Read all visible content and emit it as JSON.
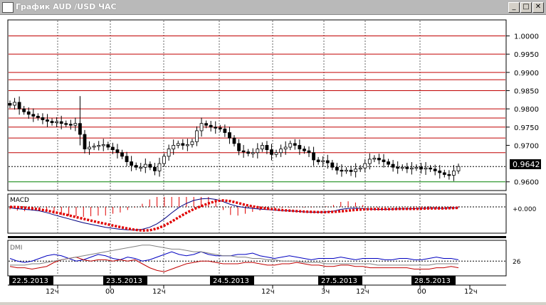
{
  "window": {
    "title": "График AUD /USD  ЧАС",
    "buttons": {
      "minimize": "_",
      "maximize": "□",
      "close": "✕"
    }
  },
  "chart_data": [
    {
      "type": "candlestick",
      "yticks": [
        "1.0000",
        "0.9950",
        "0.9900",
        "0.9850",
        "0.9800",
        "0.9750",
        "0.9700",
        "0.9600"
      ],
      "ylim": [
        0.958,
        1.004
      ],
      "last_price": "0.9642",
      "red_levels": [
        1.0,
        0.995,
        0.99,
        0.988,
        0.985,
        0.98,
        0.9775,
        0.975,
        0.972,
        0.968,
        0.96
      ],
      "series": [
        {
          "close": [
            0.981,
            0.9818,
            0.98,
            0.9792,
            0.9785,
            0.978,
            0.9776,
            0.977,
            0.9766,
            0.9762,
            0.9765,
            0.976,
            0.9758,
            0.9755,
            0.976,
            0.973,
            0.969,
            0.9695,
            0.9698,
            0.97,
            0.9702,
            0.9695,
            0.9688,
            0.968,
            0.967,
            0.9655,
            0.9645,
            0.964,
            0.964,
            0.9648,
            0.964,
            0.963,
            0.965,
            0.967,
            0.969,
            0.97,
            0.9705,
            0.97,
            0.9702,
            0.971,
            0.974,
            0.976,
            0.9755,
            0.975,
            0.9748,
            0.9745,
            0.9735,
            0.972,
            0.9705,
            0.9685,
            0.9682,
            0.9678,
            0.968,
            0.969,
            0.97,
            0.9688,
            0.9675,
            0.968,
            0.969,
            0.9695,
            0.9705,
            0.97,
            0.969,
            0.9685,
            0.968,
            0.966,
            0.9655,
            0.9658,
            0.9652,
            0.964,
            0.9632,
            0.963,
            0.9632,
            0.9628,
            0.9635,
            0.9638,
            0.965,
            0.9662,
            0.9665,
            0.966,
            0.9655,
            0.9648,
            0.964,
            0.9638,
            0.964,
            0.9636,
            0.9638,
            0.964,
            0.9635,
            0.9638,
            0.9635,
            0.963,
            0.9625,
            0.962,
            0.9618,
            0.963,
            0.9642
          ]
        }
      ]
    },
    {
      "type": "line",
      "title": "MACD",
      "ytick": "+0.000",
      "series": [
        {
          "values": [
            -0.4,
            -0.7,
            -1.0,
            -1.2,
            -1.6,
            -2.3,
            -3.2,
            -4.0,
            -4.8,
            -5.6,
            -6.4,
            -7.0,
            -7.6,
            -8.2,
            -8.6,
            -9.0,
            -9.2,
            -9.3,
            -9.0,
            -8.2,
            -6.8,
            -4.8,
            -2.4,
            -0.2,
            1.4,
            2.6,
            3.2,
            3.4,
            3.0,
            2.1,
            1.0,
            0.2,
            -0.3,
            -0.6,
            -0.9,
            -1.1,
            -1.3,
            -1.5,
            -1.6,
            -1.8,
            -2.0,
            -2.1,
            -2.1,
            -2.0,
            -1.7,
            -1.0,
            -0.6,
            -0.5,
            -0.7,
            -0.9,
            -1.0,
            -1.0,
            -0.9,
            -0.8,
            -0.8,
            -0.7,
            -0.6,
            -0.5,
            -0.5,
            -0.6,
            -0.4,
            -0.3
          ]
        },
        {
          "values": [
            0.0,
            -0.1,
            -0.3,
            -0.6,
            -1.0,
            -1.5,
            -2.1,
            -2.7,
            -3.4,
            -4.1,
            -4.8,
            -5.5,
            -6.2,
            -6.8,
            -7.5,
            -8.1,
            -8.7,
            -9.2,
            -9.5,
            -9.4,
            -8.7,
            -7.5,
            -5.9,
            -4.1,
            -2.4,
            -0.9,
            0.3,
            1.4,
            2.3,
            2.6,
            2.3,
            1.6,
            0.8,
            0.2,
            -0.3,
            -0.7,
            -1.0,
            -1.3,
            -1.5,
            -1.7,
            -1.9,
            -2.0,
            -2.1,
            -2.1,
            -2.0,
            -1.8,
            -1.5,
            -1.2,
            -1.0,
            -0.9,
            -0.9,
            -0.9,
            -0.9,
            -0.8,
            -0.8,
            -0.8,
            -0.7,
            -0.6,
            -0.6,
            -0.6,
            -0.5,
            -0.4
          ]
        }
      ]
    },
    {
      "type": "line",
      "title": "DMI",
      "ytick": "26",
      "series": [
        {
          "values": [
            28,
            26,
            25,
            26,
            28,
            30,
            31,
            30,
            28,
            26,
            27,
            29,
            31,
            30,
            28,
            27,
            29,
            28,
            26,
            27,
            29,
            31,
            33,
            31,
            30,
            31,
            33,
            31,
            30,
            30,
            30,
            31,
            31,
            32,
            30,
            29,
            28,
            29,
            30,
            29,
            28,
            27,
            28,
            28,
            28,
            29,
            28,
            27,
            28,
            28,
            28,
            27,
            27,
            28,
            28,
            27,
            27,
            28,
            29,
            28,
            28,
            27
          ]
        },
        {
          "values": [
            22,
            21,
            21,
            20,
            21,
            22,
            25,
            27,
            28,
            29,
            27,
            26,
            27,
            27,
            26,
            27,
            26,
            27,
            24,
            21,
            19,
            18,
            20,
            22,
            24,
            25,
            26,
            26,
            25,
            24,
            24,
            24,
            25,
            25,
            24,
            23,
            23,
            24,
            24,
            25,
            24,
            23,
            23,
            22,
            22,
            23,
            23,
            22,
            22,
            21,
            21,
            21,
            21,
            21,
            21,
            20,
            20,
            20,
            21,
            21,
            22,
            21
          ]
        },
        {
          "values": [
            23,
            23,
            23,
            24,
            24,
            25,
            26,
            27,
            28,
            29,
            30,
            31,
            32,
            33,
            34,
            35,
            36,
            37,
            38,
            38,
            37,
            36,
            35,
            35,
            34,
            33,
            33,
            32,
            31,
            30,
            30,
            29,
            29,
            28,
            28,
            27,
            27,
            26,
            26,
            26,
            25,
            25,
            25,
            24,
            24,
            24,
            24,
            24,
            24,
            24,
            23,
            23,
            23,
            23,
            23,
            23,
            23,
            23,
            24,
            24,
            24,
            24
          ]
        }
      ]
    }
  ],
  "time_axis": {
    "dates": [
      "22.5.2013",
      "23.5.2013",
      "24.5.2013",
      "27.5.2013",
      "28.5.2013"
    ],
    "hours": [
      "12ч",
      "00",
      "12ч",
      "12ч",
      "3ч",
      "12ч",
      "00",
      "12ч"
    ]
  }
}
